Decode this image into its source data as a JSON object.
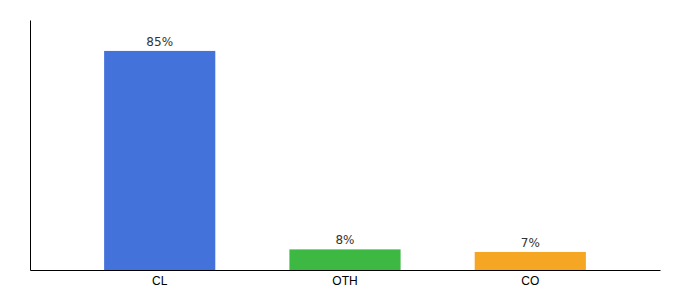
{
  "chart_data": {
    "type": "bar",
    "categories": [
      "CL",
      "OTH",
      "CO"
    ],
    "values": [
      85,
      8,
      7
    ],
    "value_labels": [
      "85%",
      "8%",
      "7%"
    ],
    "colors": [
      "#4472db",
      "#3cb843",
      "#f5a623"
    ],
    "ylim": [
      0,
      97
    ],
    "data_labels": true,
    "tick_labels": "x"
  }
}
